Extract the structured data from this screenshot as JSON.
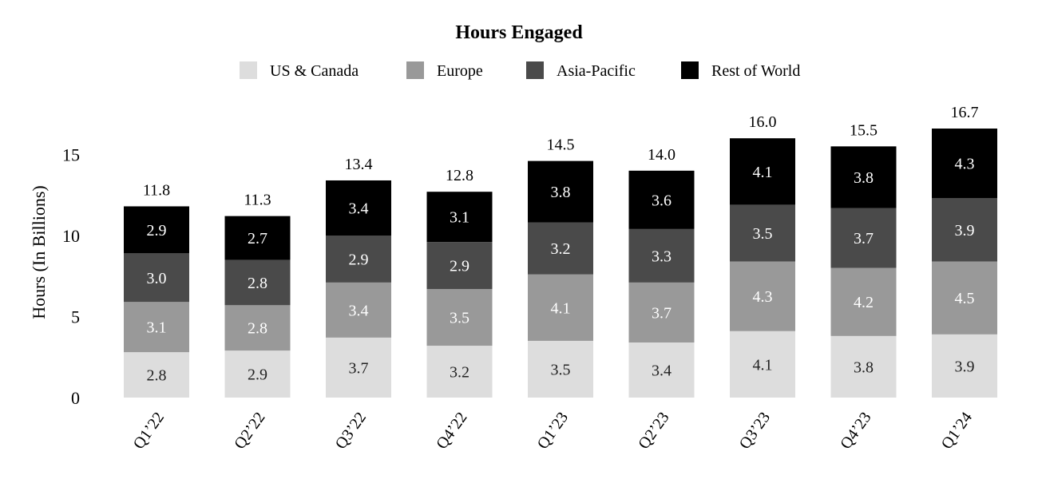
{
  "chart_data": {
    "type": "bar",
    "stacked": true,
    "title": "Hours Engaged",
    "ylabel": "Hours (In Billions)",
    "xlabel": "",
    "ylim": [
      0,
      17
    ],
    "yticks": [
      0,
      5,
      10,
      15
    ],
    "grid": false,
    "legend_position": "top-center",
    "categories": [
      "Q1’22",
      "Q2’22",
      "Q3’22",
      "Q4’22",
      "Q1’23",
      "Q2’23",
      "Q3’23",
      "Q4’23",
      "Q1’24"
    ],
    "series": [
      {
        "name": "US & Canada",
        "color": "#dddddd",
        "label_color": "#222222",
        "values": [
          2.8,
          2.9,
          3.7,
          3.2,
          3.5,
          3.4,
          4.1,
          3.8,
          3.9
        ]
      },
      {
        "name": "Europe",
        "color": "#999999",
        "label_color": "#ffffff",
        "values": [
          3.1,
          2.8,
          3.4,
          3.5,
          4.1,
          3.7,
          4.3,
          4.2,
          4.5
        ]
      },
      {
        "name": "Asia-Pacific",
        "color": "#4a4a4a",
        "label_color": "#ffffff",
        "values": [
          3.0,
          2.8,
          2.9,
          2.9,
          3.2,
          3.3,
          3.5,
          3.7,
          3.9
        ]
      },
      {
        "name": "Rest of World",
        "color": "#000000",
        "label_color": "#ffffff",
        "values": [
          2.9,
          2.7,
          3.4,
          3.1,
          3.8,
          3.6,
          4.1,
          3.8,
          4.3
        ]
      }
    ],
    "totals": [
      "11.8",
      "11.3",
      "13.4",
      "12.8",
      "14.5",
      "14.0",
      "16.0",
      "15.5",
      "16.7"
    ]
  }
}
